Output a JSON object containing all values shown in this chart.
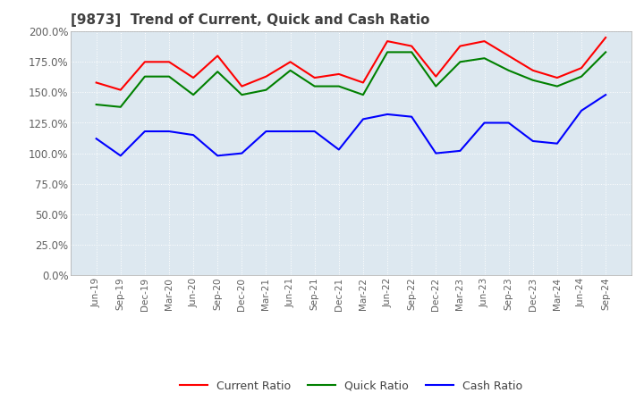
{
  "title": "[9873]  Trend of Current, Quick and Cash Ratio",
  "x_labels": [
    "Jun-19",
    "Sep-19",
    "Dec-19",
    "Mar-20",
    "Jun-20",
    "Sep-20",
    "Dec-20",
    "Mar-21",
    "Jun-21",
    "Sep-21",
    "Dec-21",
    "Mar-22",
    "Jun-22",
    "Sep-22",
    "Dec-22",
    "Mar-23",
    "Jun-23",
    "Sep-23",
    "Dec-23",
    "Mar-24",
    "Jun-24",
    "Sep-24"
  ],
  "current_ratio": [
    158,
    152,
    175,
    175,
    162,
    180,
    155,
    163,
    175,
    162,
    165,
    158,
    192,
    188,
    163,
    188,
    192,
    180,
    168,
    162,
    170,
    195
  ],
  "quick_ratio": [
    140,
    138,
    163,
    163,
    148,
    167,
    148,
    152,
    168,
    155,
    155,
    148,
    183,
    183,
    155,
    175,
    178,
    168,
    160,
    155,
    163,
    183
  ],
  "cash_ratio": [
    112,
    98,
    118,
    118,
    115,
    98,
    100,
    118,
    118,
    118,
    103,
    128,
    132,
    130,
    100,
    102,
    125,
    125,
    110,
    108,
    135,
    148
  ],
  "current_color": "#ff0000",
  "quick_color": "#008000",
  "cash_color": "#0000ff",
  "ylim": [
    0,
    200
  ],
  "ytick_step": 25,
  "bg_color": "#ffffff",
  "plot_bg_color": "#dde8f0",
  "grid_color": "#ffffff",
  "legend_labels": [
    "Current Ratio",
    "Quick Ratio",
    "Cash Ratio"
  ],
  "title_color": "#404040",
  "tick_color": "#606060"
}
